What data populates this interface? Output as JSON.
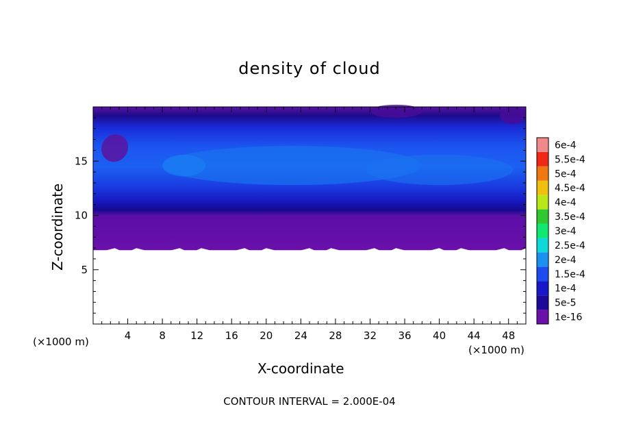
{
  "chart_data": {
    "type": "heatmap",
    "title": "density of cloud",
    "xlabel": "X-coordinate",
    "ylabel": "Z-coordinate",
    "x_unit_label": "(×1000 m)",
    "y_unit_label": "(×1000 m)",
    "x_ticks": [
      4,
      8,
      12,
      16,
      20,
      24,
      28,
      32,
      36,
      40,
      44,
      48
    ],
    "y_ticks": [
      5,
      10,
      15
    ],
    "xlim": [
      0,
      50
    ],
    "ylim": [
      0,
      20
    ],
    "footer": "CONTOUR INTERVAL = 2.000E-04",
    "colorbar": {
      "labels": [
        "1e-16",
        "5e-5",
        "1e-4",
        "1.5e-4",
        "2e-4",
        "2.5e-4",
        "3e-4",
        "3.5e-4",
        "4e-4",
        "4.5e-4",
        "5e-4",
        "5.5e-4",
        "6e-4"
      ],
      "colors": [
        "#6a0fa8",
        "#1b0a9a",
        "#1818c8",
        "#1c4cf0",
        "#1a90f0",
        "#10d8d8",
        "#10e870",
        "#30c830",
        "#b8e818",
        "#f0c010",
        "#f07810",
        "#f02818",
        "#f08a8a"
      ]
    },
    "cloud_base_z": 6.8,
    "field_description_by_height": [
      {
        "z": 19.5,
        "value": 2e-05
      },
      {
        "z": 18.5,
        "value": 8e-05
      },
      {
        "z": 16.5,
        "value": 0.00013
      },
      {
        "z": 14.0,
        "value": 0.00014
      },
      {
        "z": 12.0,
        "value": 0.00012
      },
      {
        "z": 10.5,
        "value": 9e-05
      },
      {
        "z": 9.5,
        "value": 4e-05
      },
      {
        "z": 8.0,
        "value": 1e-05
      }
    ]
  }
}
